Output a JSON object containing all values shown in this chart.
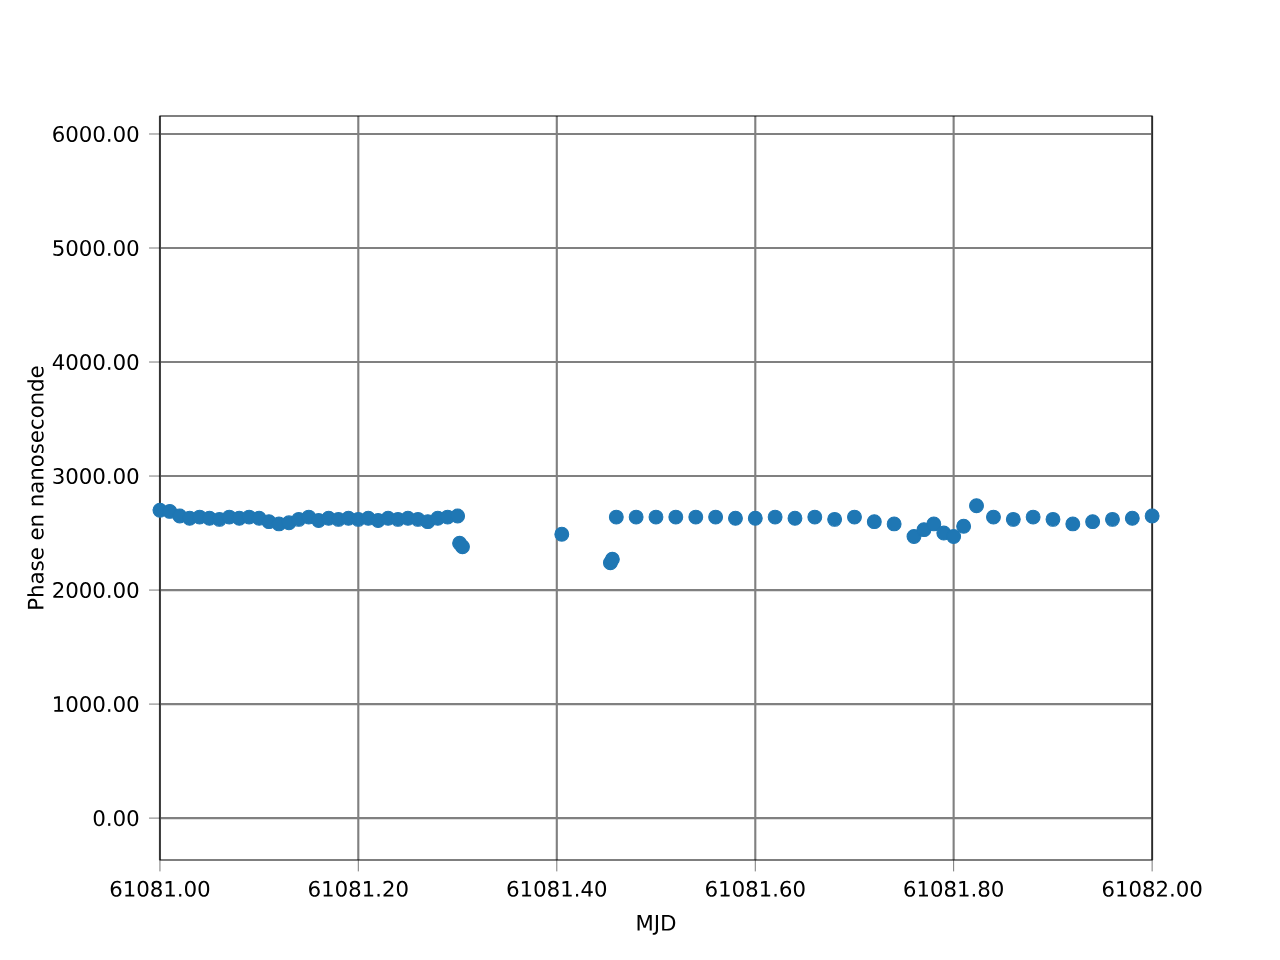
{
  "chart_data": {
    "type": "scatter",
    "xlabel": "MJD",
    "ylabel": "Phase en nanoseconde",
    "color": "#1f77b4",
    "grid": true,
    "xlim": [
      61081.0,
      61082.0
    ],
    "ylim": [
      -368,
      6158
    ],
    "xticks": [
      {
        "value": 61081.0,
        "label": "61081.00"
      },
      {
        "value": 61081.2,
        "label": "61081.20"
      },
      {
        "value": 61081.4,
        "label": "61081.40"
      },
      {
        "value": 61081.6,
        "label": "61081.60"
      },
      {
        "value": 61081.8,
        "label": "61081.80"
      },
      {
        "value": 61082.0,
        "label": "61082.00"
      }
    ],
    "yticks": [
      {
        "value": 0,
        "label": "0.00"
      },
      {
        "value": 1000,
        "label": "1000.00"
      },
      {
        "value": 2000,
        "label": "2000.00"
      },
      {
        "value": 3000,
        "label": "3000.00"
      },
      {
        "value": 4000,
        "label": "4000.00"
      },
      {
        "value": 5000,
        "label": "5000.00"
      },
      {
        "value": 6000,
        "label": "6000.00"
      }
    ],
    "x": [
      61081.0,
      61081.01,
      61081.02,
      61081.03,
      61081.04,
      61081.05,
      61081.06,
      61081.07,
      61081.08,
      61081.09,
      61081.1,
      61081.11,
      61081.12,
      61081.13,
      61081.14,
      61081.15,
      61081.16,
      61081.17,
      61081.18,
      61081.19,
      61081.2,
      61081.21,
      61081.22,
      61081.23,
      61081.24,
      61081.25,
      61081.26,
      61081.27,
      61081.28,
      61081.29,
      61081.3,
      61081.302,
      61081.305,
      61081.405,
      61081.454,
      61081.456,
      61081.46,
      61081.48,
      61081.5,
      61081.52,
      61081.54,
      61081.56,
      61081.58,
      61081.6,
      61081.62,
      61081.64,
      61081.66,
      61081.68,
      61081.7,
      61081.72,
      61081.74,
      61081.76,
      61081.77,
      61081.78,
      61081.79,
      61081.8,
      61081.81,
      61081.823,
      61081.84,
      61081.86,
      61081.88,
      61081.9,
      61081.92,
      61081.94,
      61081.96,
      61081.98,
      61082.0
    ],
    "values": [
      2700,
      2690,
      2650,
      2630,
      2640,
      2630,
      2620,
      2640,
      2630,
      2640,
      2630,
      2600,
      2580,
      2590,
      2620,
      2640,
      2610,
      2630,
      2620,
      2630,
      2620,
      2630,
      2610,
      2630,
      2620,
      2630,
      2620,
      2600,
      2630,
      2640,
      2650,
      2410,
      2380,
      2490,
      2240,
      2270,
      2640,
      2640,
      2640,
      2640,
      2640,
      2640,
      2630,
      2630,
      2640,
      2630,
      2640,
      2620,
      2640,
      2600,
      2580,
      2470,
      2530,
      2580,
      2500,
      2470,
      2560,
      2740,
      2640,
      2620,
      2640,
      2620,
      2580,
      2600,
      2620,
      2630,
      2650
    ]
  }
}
